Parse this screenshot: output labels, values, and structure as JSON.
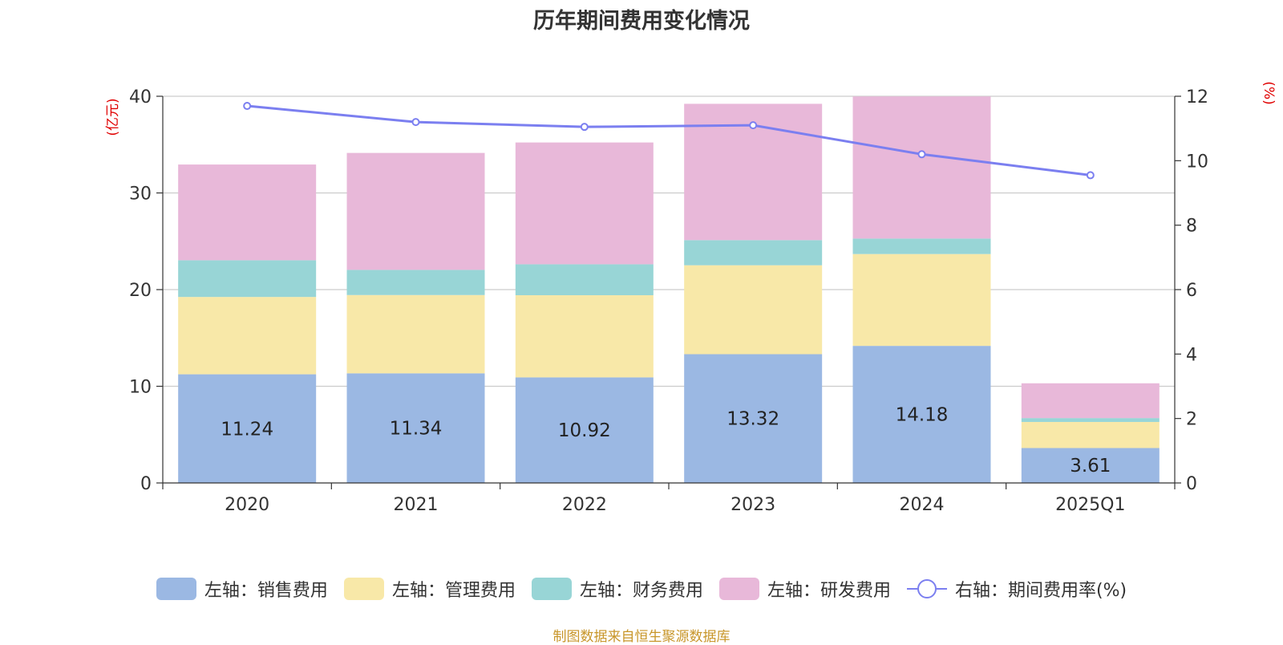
{
  "chart_data": {
    "type": "bar",
    "title": "历年期间费用变化情况",
    "categories": [
      "2020",
      "2021",
      "2022",
      "2023",
      "2024",
      "2025Q1"
    ],
    "left_axis": {
      "unit_label": "(亿元)",
      "ylim": [
        0,
        40
      ],
      "ticks": [
        "0",
        "10",
        "20",
        "30",
        "40"
      ]
    },
    "right_axis": {
      "unit_label": "(%)",
      "ylim": [
        0,
        12
      ],
      "ticks": [
        "0",
        "2",
        "4",
        "6",
        "8",
        "10",
        "12"
      ]
    },
    "series": [
      {
        "name": "左轴：销售费用",
        "axis": "left",
        "stack": "total",
        "color": "#9bb8e3",
        "values": [
          11.24,
          11.34,
          10.92,
          13.32,
          14.18,
          3.61
        ],
        "labels": [
          "11.24",
          "11.34",
          "10.92",
          "13.32",
          "14.18",
          "3.61"
        ]
      },
      {
        "name": "左轴：管理费用",
        "axis": "left",
        "stack": "total",
        "color": "#f8e8a8",
        "values": [
          8.0,
          8.1,
          8.5,
          9.2,
          9.5,
          2.7
        ]
      },
      {
        "name": "左轴：财务费用",
        "axis": "left",
        "stack": "total",
        "color": "#98d5d6",
        "values": [
          3.8,
          2.6,
          3.2,
          2.6,
          1.6,
          0.4
        ]
      },
      {
        "name": "左轴：研发费用",
        "axis": "left",
        "stack": "total",
        "color": "#e8b8d9",
        "values": [
          9.9,
          12.1,
          12.6,
          14.1,
          14.7,
          3.6
        ]
      },
      {
        "name": "右轴：期间费用率(%)",
        "type": "line",
        "axis": "right",
        "color": "#7b7ff0",
        "values": [
          11.7,
          11.2,
          11.05,
          11.1,
          10.2,
          9.55
        ]
      }
    ],
    "grid": true,
    "legend_position": "bottom",
    "source": "制图数据来自恒生聚源数据库"
  }
}
